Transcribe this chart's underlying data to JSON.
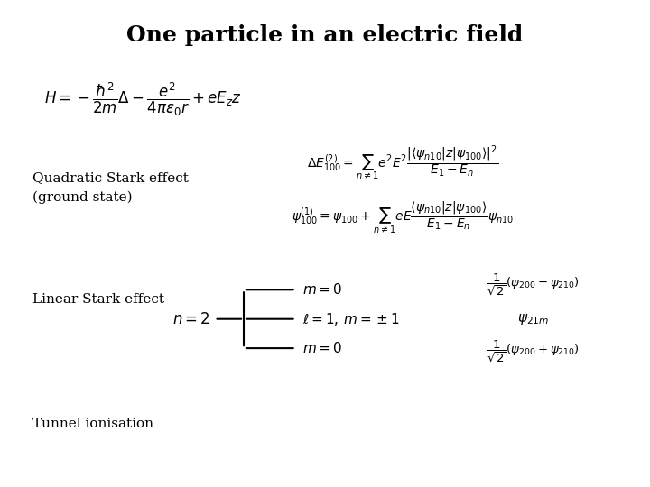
{
  "title": "One particle in an electric field",
  "title_fontsize": 18,
  "background_color": "#ffffff",
  "text_color": "#000000",
  "figsize": [
    7.2,
    5.4
  ],
  "dpi": 100,
  "equations": {
    "hamiltonian": "$H = -\\dfrac{\\hbar^2}{2m}\\Delta - \\dfrac{e^2}{4\\pi\\varepsilon_0 r} + eE_z z$",
    "energy_correction": "$\\Delta E_{100}^{(2)} = \\sum_{n\\neq 1} e^2 E^2 \\dfrac{|\\langle \\psi_{n10} | z | \\psi_{100} \\rangle|^2}{E_1 - E_n}$",
    "wavefunction": "$\\psi_{100}^{(1)} = \\psi_{100} + \\sum_{n\\neq 1} eE \\dfrac{\\langle \\psi_{n10} | z | \\psi_{100} \\rangle}{E_1 - E_n} \\psi_{n10}$",
    "n2": "$n = 2$",
    "m0_top": "$m = 0$",
    "l1m": "$\\ell = 1,\\, m = \\pm 1$",
    "m0_bot": "$m = 0$",
    "psi_top": "$\\dfrac{1}{\\sqrt{2}}(\\psi_{200} - \\psi_{210})$",
    "psi_21m": "$\\psi_{21m}$",
    "psi_bot": "$\\dfrac{1}{\\sqrt{2}}(\\psi_{200} + \\psi_{210})$"
  },
  "labels": {
    "quadratic": "Quadratic Stark effect\n(ground state)",
    "linear": "Linear Stark effect",
    "tunnel": "Tunnel ionisation"
  }
}
